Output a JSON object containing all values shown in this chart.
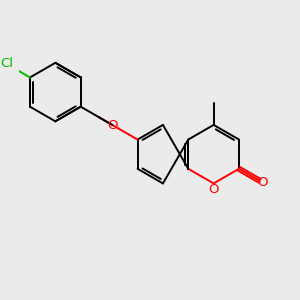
{
  "background_color": "#ebebeb",
  "bond_color": "#000000",
  "oxygen_color": "#ff0000",
  "chlorine_color": "#00bb00",
  "figsize": [
    3.0,
    3.0
  ],
  "dpi": 100,
  "bond_width": 1.4,
  "font_size": 9.5,
  "xlim": [
    0,
    10
  ],
  "ylim": [
    0,
    10
  ]
}
